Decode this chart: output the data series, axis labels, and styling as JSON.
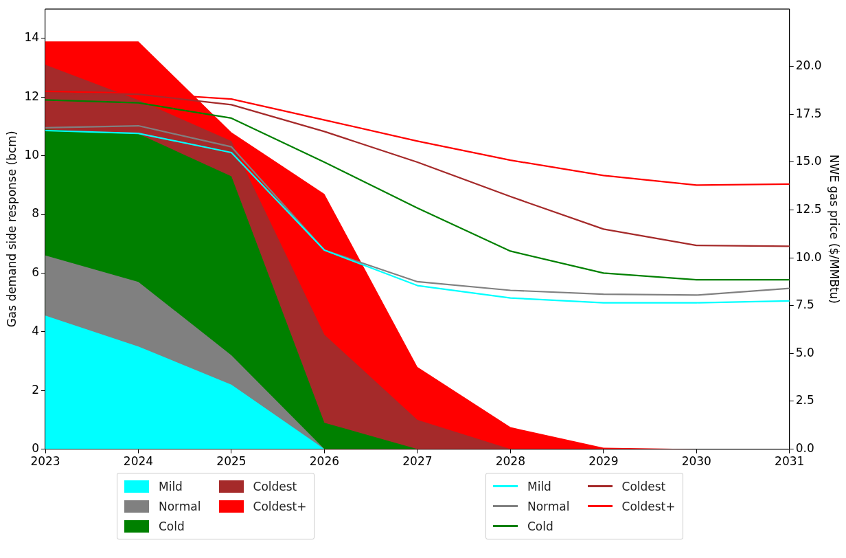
{
  "chart_data": {
    "type": "area",
    "ylabel": "Gas demand side response (bcm)",
    "y2label": "NWE gas price ($/MMBtu)",
    "x": [
      2023,
      2024,
      2025,
      2026,
      2027,
      2028,
      2029,
      2030,
      2031
    ],
    "xlim": [
      2023,
      2031
    ],
    "xticks": [
      2023,
      2024,
      2025,
      2026,
      2027,
      2028,
      2029,
      2030,
      2031
    ],
    "ylim": [
      0,
      15
    ],
    "yticks": [
      0,
      2,
      4,
      6,
      8,
      10,
      12,
      14
    ],
    "y2lim": [
      0,
      23
    ],
    "y2ticks": [
      {
        "value": 0,
        "label": "0.0"
      },
      2.5,
      {
        "value": 5,
        "label": "5.0"
      },
      7.5,
      {
        "value": 10,
        "label": "10.0"
      },
      12.5,
      {
        "value": 15,
        "label": "15.0"
      },
      17.5,
      {
        "value": 20,
        "label": "20.0"
      }
    ],
    "grid": false,
    "legend": "bottom",
    "series": [
      {
        "name": "Mild",
        "color": "#00ffff",
        "values": [
          4.55,
          3.5,
          2.2,
          0,
          0,
          0,
          0,
          0,
          0
        ]
      },
      {
        "name": "Normal",
        "color": "#808080",
        "values": [
          6.6,
          5.7,
          3.2,
          0,
          0,
          0,
          0,
          0,
          0
        ]
      },
      {
        "name": "Cold",
        "color": "#008000",
        "values": [
          10.9,
          10.75,
          9.3,
          0.9,
          0,
          0,
          0,
          0,
          0
        ]
      },
      {
        "name": "Coldest",
        "color": "#a52a2a",
        "values": [
          13.1,
          11.9,
          10.5,
          3.9,
          1.0,
          0,
          0,
          0,
          0
        ]
      },
      {
        "name": "Coldest+",
        "color": "#ff0000",
        "values": [
          13.9,
          13.9,
          10.8,
          8.7,
          2.8,
          0.75,
          0.05,
          0,
          0
        ]
      },
      {
        "name": "Mild",
        "type": "line",
        "axis": "y2",
        "color": "#00ffff",
        "values": [
          16.65,
          16.5,
          15.5,
          10.4,
          8.55,
          7.9,
          7.65,
          7.65,
          7.75
        ]
      },
      {
        "name": "Normal",
        "type": "line",
        "axis": "y2",
        "color": "#808080",
        "values": [
          16.8,
          16.9,
          15.8,
          10.4,
          8.75,
          8.3,
          8.1,
          8.05,
          8.4
        ]
      },
      {
        "name": "Cold",
        "type": "line",
        "axis": "y2",
        "color": "#008000",
        "values": [
          18.25,
          18.1,
          17.3,
          15.0,
          12.6,
          10.35,
          9.2,
          8.85,
          8.85
        ]
      },
      {
        "name": "Coldest",
        "type": "line",
        "axis": "y2",
        "color": "#a52a2a",
        "values": [
          18.6,
          18.55,
          18.0,
          16.6,
          15.0,
          13.2,
          11.5,
          10.65,
          10.6
        ]
      },
      {
        "name": "Coldest+",
        "type": "line",
        "axis": "y2",
        "color": "#ff0000",
        "values": [
          18.7,
          18.6,
          18.3,
          17.2,
          16.1,
          15.1,
          14.3,
          13.8,
          13.85
        ]
      }
    ]
  }
}
